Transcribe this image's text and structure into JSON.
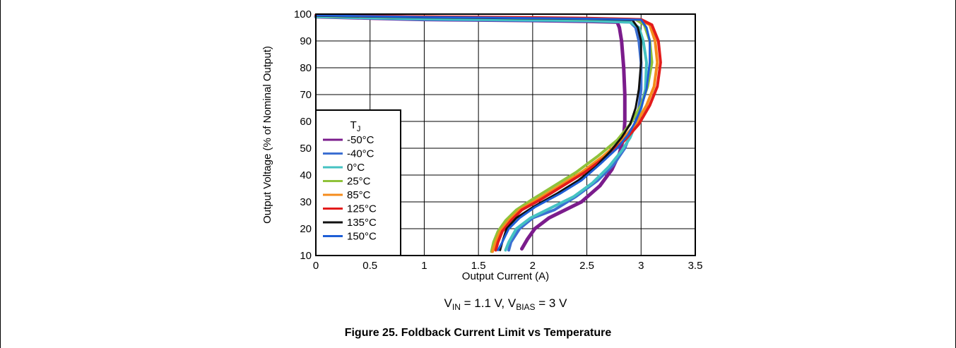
{
  "figure": {
    "caption": "Figure 25. Foldback Current Limit vs Temperature",
    "condition": {
      "v_in_prefix": "V",
      "v_in_sub": "IN",
      "v_in_value": " = 1.1 V, ",
      "v_bias_prefix": "V",
      "v_bias_sub": "BIAS",
      "v_bias_value": " = 3 V"
    }
  },
  "chart_data": {
    "type": "line",
    "xlabel": "Output Current (A)",
    "ylabel": "Output Voltage (% of Nominal Output)",
    "xlim": [
      0,
      3.5
    ],
    "ylim": [
      10,
      100
    ],
    "xticks": [
      0,
      0.5,
      1,
      1.5,
      2,
      2.5,
      3,
      3.5
    ],
    "xtick_labels": [
      "0",
      "0.5",
      "1",
      "1.5",
      "2",
      "2.5",
      "3",
      "3.5"
    ],
    "yticks": [
      10,
      20,
      30,
      40,
      50,
      60,
      70,
      80,
      90,
      100
    ],
    "ytick_labels": [
      "10",
      "20",
      "30",
      "40",
      "50",
      "60",
      "70",
      "80",
      "90",
      "100"
    ],
    "grid": true,
    "legend": {
      "title_main": "T",
      "title_sub": "J",
      "placement": "lower-left"
    },
    "series": [
      {
        "name": "-50°C",
        "color": "#7b1c8c",
        "width": 5,
        "x": [
          0,
          0.5,
          1,
          1.5,
          2,
          2.5,
          2.78,
          2.8,
          2.82,
          2.84,
          2.85,
          2.85,
          2.84,
          2.8,
          2.73,
          2.62,
          2.45,
          2.3,
          2.15,
          2.02,
          1.95,
          1.9
        ],
        "y": [
          99,
          98.5,
          98,
          97.8,
          97.6,
          97.3,
          97,
          95,
          90,
          80,
          70,
          60,
          54,
          48,
          42,
          36,
          30,
          27,
          24,
          20,
          16,
          12.5
        ]
      },
      {
        "name": "-40°C",
        "color": "#3c6fd2",
        "width": 4,
        "x": [
          0,
          0.5,
          1,
          1.5,
          2,
          2.5,
          2.9,
          2.95,
          2.98,
          3.0,
          3.0,
          2.98,
          2.95,
          2.9,
          2.85,
          2.75,
          2.6,
          2.4,
          2.2,
          2.0,
          1.88,
          1.8,
          1.78
        ],
        "y": [
          99,
          98.5,
          98,
          97.8,
          97.6,
          97.4,
          97,
          95,
          90,
          82,
          72,
          65,
          60,
          55,
          50,
          44,
          38,
          32,
          27,
          24,
          20,
          15,
          12
        ]
      },
      {
        "name": "0°C",
        "color": "#45c2c2",
        "width": 4,
        "x": [
          0,
          0.5,
          1,
          1.5,
          2,
          2.5,
          2.9,
          2.98,
          3.02,
          3.05,
          3.04,
          3.0,
          2.95,
          2.9,
          2.82,
          2.7,
          2.55,
          2.38,
          2.18,
          1.98,
          1.85,
          1.78,
          1.75
        ],
        "y": [
          99,
          98.6,
          98.2,
          98,
          97.8,
          97.5,
          97,
          95,
          90,
          82,
          72,
          65,
          59,
          54,
          49,
          43,
          37,
          32,
          28,
          24,
          20,
          15,
          12
        ]
      },
      {
        "name": "25°C",
        "color": "#8fc23a",
        "width": 4,
        "x": [
          0,
          0.5,
          1,
          1.5,
          2,
          2.5,
          2.95,
          3.03,
          3.08,
          3.1,
          3.06,
          3.0,
          2.9,
          2.78,
          2.6,
          2.4,
          2.2,
          2.0,
          1.85,
          1.75,
          1.68,
          1.64,
          1.62
        ],
        "y": [
          99.5,
          99.2,
          99,
          98.8,
          98.5,
          98.3,
          98,
          96,
          90,
          82,
          73,
          66,
          59,
          53,
          47,
          41,
          36,
          31,
          27,
          23,
          19,
          15,
          11.5
        ]
      },
      {
        "name": "85°C",
        "color": "#f58c1c",
        "width": 4,
        "x": [
          0,
          0.5,
          1,
          1.5,
          2,
          2.5,
          2.98,
          3.08,
          3.13,
          3.15,
          3.12,
          3.05,
          2.95,
          2.82,
          2.65,
          2.45,
          2.25,
          2.05,
          1.88,
          1.78,
          1.7,
          1.66,
          1.63
        ],
        "y": [
          99.5,
          99.2,
          99,
          98.8,
          98.6,
          98.4,
          98,
          96,
          90,
          82,
          73,
          66,
          59,
          53,
          47,
          41,
          36,
          31,
          27,
          23,
          19,
          15,
          11.5
        ]
      },
      {
        "name": "125°C",
        "color": "#e31b1b",
        "width": 4,
        "x": [
          0,
          0.5,
          1,
          1.5,
          2,
          2.5,
          3.0,
          3.1,
          3.16,
          3.18,
          3.15,
          3.08,
          2.98,
          2.85,
          2.68,
          2.48,
          2.28,
          2.08,
          1.9,
          1.8,
          1.72,
          1.68,
          1.66
        ],
        "y": [
          99.6,
          99.3,
          99,
          98.9,
          98.7,
          98.5,
          98,
          96,
          90,
          82,
          73,
          66,
          59,
          53,
          47,
          41,
          36,
          31,
          27,
          23,
          19,
          15,
          12
        ]
      },
      {
        "name": "135°C",
        "color": "#111111",
        "width": 3,
        "x": [
          0,
          0.5,
          1,
          1.5,
          2,
          2.5,
          2.92,
          2.97,
          3.0,
          3.0,
          2.98,
          2.95,
          2.9,
          2.82,
          2.72,
          2.58,
          2.42,
          2.22,
          2.0,
          1.85,
          1.76,
          1.72,
          1.7
        ],
        "y": [
          99.4,
          99.1,
          98.8,
          98.6,
          98.4,
          98.2,
          97.8,
          95,
          90,
          82,
          72,
          65,
          59,
          54,
          49,
          43,
          38,
          33,
          28,
          24,
          20,
          15,
          12
        ]
      },
      {
        "name": "150°C",
        "color": "#1e5ed6",
        "width": 3,
        "x": [
          0,
          0.5,
          1,
          1.5,
          2,
          2.5,
          3.0,
          3.05,
          3.08,
          3.08,
          3.05,
          3.0,
          2.95,
          2.88,
          2.78,
          2.62,
          2.45,
          2.25,
          2.02,
          1.88,
          1.78,
          1.72,
          1.68
        ],
        "y": [
          99.5,
          99.2,
          98.9,
          98.7,
          98.5,
          98.3,
          97.9,
          95,
          90,
          82,
          72,
          65,
          60,
          55,
          50,
          44,
          38,
          33,
          28,
          24,
          20,
          15,
          12
        ]
      }
    ]
  }
}
